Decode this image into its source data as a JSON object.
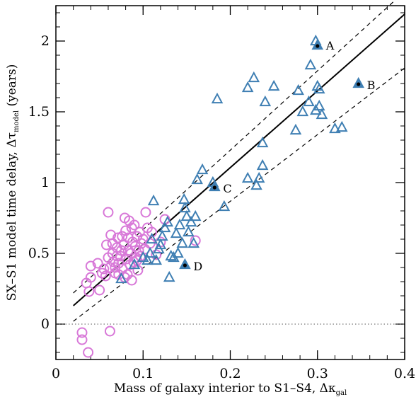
{
  "chart_data": {
    "type": "scatter",
    "xlabel": "Mass of galaxy interior to S1–S4, Δκ",
    "xlabel_sub": "gal",
    "ylabel": "SX–S1 model time delay, Δτ",
    "ylabel_sub": "model",
    "ylabel_unit": " (years)",
    "xlim": [
      0,
      0.4
    ],
    "ylim": [
      -0.25,
      2.25
    ],
    "xticks": [
      {
        "value": 0,
        "label": "0"
      },
      {
        "value": 0.1,
        "label": "0.1"
      },
      {
        "value": 0.2,
        "label": "0.2"
      },
      {
        "value": 0.3,
        "label": "0.3"
      },
      {
        "value": 0.4,
        "label": "0.4"
      }
    ],
    "yticks": [
      {
        "value": 0,
        "label": "0"
      },
      {
        "value": 0.5,
        "label": "0.5"
      },
      {
        "value": 1,
        "label": "1"
      },
      {
        "value": 1.5,
        "label": "1.5"
      },
      {
        "value": 2,
        "label": "2"
      }
    ],
    "x_minor_step": 0.02,
    "y_minor_step": 0.1,
    "colors": {
      "circles": "#d878d8",
      "triangles": "#3f7fb3",
      "highlight": "#000000"
    },
    "lines": {
      "fit": {
        "x": [
          0.02,
          0.4
        ],
        "y": [
          0.13,
          2.19
        ],
        "style": "solid"
      },
      "upper": {
        "x": [
          0.02,
          0.4
        ],
        "y": [
          0.22,
          2.35
        ],
        "style": "dashed"
      },
      "lower": {
        "x": [
          0.02,
          0.4
        ],
        "y": [
          0.02,
          1.81
        ],
        "style": "dashed"
      },
      "zero": {
        "x": [
          0,
          0.4
        ],
        "y": [
          0,
          0
        ],
        "style": "dotted"
      }
    },
    "series": [
      {
        "marker": "circle-open",
        "color": "#d878d8",
        "points": [
          [
            0.03,
            -0.06
          ],
          [
            0.03,
            -0.11
          ],
          [
            0.037,
            -0.2
          ],
          [
            0.062,
            -0.05
          ],
          [
            0.035,
            0.29
          ],
          [
            0.038,
            0.23
          ],
          [
            0.04,
            0.33
          ],
          [
            0.04,
            0.41
          ],
          [
            0.048,
            0.43
          ],
          [
            0.05,
            0.24
          ],
          [
            0.053,
            0.36
          ],
          [
            0.055,
            0.39
          ],
          [
            0.057,
            0.34
          ],
          [
            0.058,
            0.56
          ],
          [
            0.06,
            0.79
          ],
          [
            0.06,
            0.47
          ],
          [
            0.062,
            0.4
          ],
          [
            0.063,
            0.63
          ],
          [
            0.065,
            0.5
          ],
          [
            0.066,
            0.44
          ],
          [
            0.068,
            0.36
          ],
          [
            0.07,
            0.54
          ],
          [
            0.071,
            0.61
          ],
          [
            0.072,
            0.43
          ],
          [
            0.074,
            0.48
          ],
          [
            0.075,
            0.52
          ],
          [
            0.076,
            0.39
          ],
          [
            0.078,
            0.56
          ],
          [
            0.079,
            0.75
          ],
          [
            0.08,
            0.66
          ],
          [
            0.081,
            0.46
          ],
          [
            0.082,
            0.35
          ],
          [
            0.083,
            0.52
          ],
          [
            0.084,
            0.73
          ],
          [
            0.085,
            0.42
          ],
          [
            0.086,
            0.5
          ],
          [
            0.087,
            0.31
          ],
          [
            0.088,
            0.58
          ],
          [
            0.089,
            0.44
          ],
          [
            0.09,
            0.7
          ],
          [
            0.091,
            0.55
          ],
          [
            0.092,
            0.47
          ],
          [
            0.093,
            0.62
          ],
          [
            0.094,
            0.38
          ],
          [
            0.095,
            0.52
          ],
          [
            0.096,
            0.65
          ],
          [
            0.097,
            0.48
          ],
          [
            0.098,
            0.57
          ],
          [
            0.1,
            0.6
          ],
          [
            0.102,
            0.53
          ],
          [
            0.103,
            0.79
          ],
          [
            0.105,
            0.68
          ],
          [
            0.108,
            0.57
          ],
          [
            0.11,
            0.65
          ],
          [
            0.115,
            0.49
          ],
          [
            0.12,
            0.58
          ],
          [
            0.125,
            0.74
          ],
          [
            0.16,
            0.59
          ],
          [
            0.065,
            0.57
          ],
          [
            0.07,
            0.48
          ],
          [
            0.076,
            0.62
          ],
          [
            0.083,
            0.61
          ],
          [
            0.087,
            0.68
          ],
          [
            0.093,
            0.45
          ],
          [
            0.068,
            0.4
          ],
          [
            0.072,
            0.35
          ],
          [
            0.079,
            0.33
          ]
        ]
      },
      {
        "marker": "triangle-open",
        "color": "#3f7fb3",
        "points": [
          [
            0.075,
            0.32
          ],
          [
            0.09,
            0.42
          ],
          [
            0.1,
            0.47
          ],
          [
            0.105,
            0.45
          ],
          [
            0.108,
            0.5
          ],
          [
            0.11,
            0.6
          ],
          [
            0.112,
            0.87
          ],
          [
            0.115,
            0.45
          ],
          [
            0.118,
            0.53
          ],
          [
            0.12,
            0.56
          ],
          [
            0.122,
            0.62
          ],
          [
            0.125,
            0.68
          ],
          [
            0.128,
            0.72
          ],
          [
            0.13,
            0.33
          ],
          [
            0.132,
            0.48
          ],
          [
            0.135,
            0.47
          ],
          [
            0.138,
            0.64
          ],
          [
            0.14,
            0.5
          ],
          [
            0.142,
            0.7
          ],
          [
            0.145,
            0.57
          ],
          [
            0.147,
            0.88
          ],
          [
            0.148,
            0.82
          ],
          [
            0.15,
            0.76
          ],
          [
            0.152,
            0.65
          ],
          [
            0.155,
            0.72
          ],
          [
            0.158,
            0.57
          ],
          [
            0.16,
            0.76
          ],
          [
            0.162,
            1.02
          ],
          [
            0.168,
            1.09
          ],
          [
            0.18,
            1.0
          ],
          [
            0.185,
            1.59
          ],
          [
            0.193,
            0.83
          ],
          [
            0.22,
            1.67
          ],
          [
            0.22,
            1.03
          ],
          [
            0.227,
            1.74
          ],
          [
            0.23,
            0.98
          ],
          [
            0.233,
            1.03
          ],
          [
            0.237,
            1.28
          ],
          [
            0.237,
            1.12
          ],
          [
            0.24,
            1.57
          ],
          [
            0.25,
            1.68
          ],
          [
            0.275,
            1.37
          ],
          [
            0.278,
            1.65
          ],
          [
            0.283,
            1.5
          ],
          [
            0.29,
            1.57
          ],
          [
            0.292,
            1.83
          ],
          [
            0.298,
            1.51
          ],
          [
            0.3,
            1.68
          ],
          [
            0.302,
            1.54
          ],
          [
            0.305,
            1.48
          ],
          [
            0.32,
            1.38
          ],
          [
            0.328,
            1.39
          ],
          [
            0.298,
            2.0
          ],
          [
            0.302,
            1.66
          ]
        ]
      },
      {
        "marker": "triangle-filled",
        "color": "#3f7fb3",
        "points": [
          [
            0.3,
            1.97
          ],
          [
            0.347,
            1.7
          ],
          [
            0.182,
            0.97
          ],
          [
            0.148,
            0.42
          ]
        ]
      }
    ],
    "annotations": [
      {
        "label": "A",
        "x": 0.3,
        "y": 1.97
      },
      {
        "label": "B",
        "x": 0.347,
        "y": 1.69
      },
      {
        "label": "C",
        "x": 0.182,
        "y": 0.96
      },
      {
        "label": "D",
        "x": 0.148,
        "y": 0.41
      }
    ]
  }
}
